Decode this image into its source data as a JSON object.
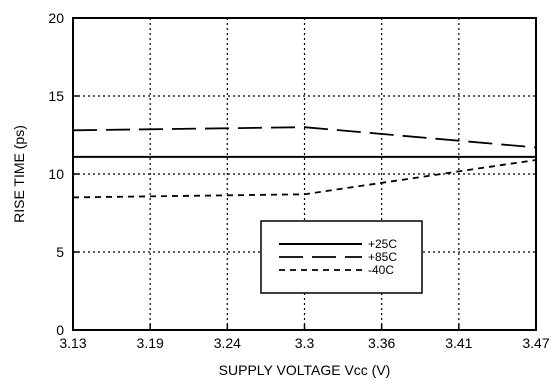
{
  "chart_data": {
    "type": "line",
    "xlabel": "SUPPLY VOLTAGE Vcc (V)",
    "ylabel": "RISE TIME (ps)",
    "x_ticks": [
      "3.13",
      "3.19",
      "3.24",
      "3.3",
      "3.36",
      "3.41",
      "3.47"
    ],
    "x": [
      3.13,
      3.3,
      3.47
    ],
    "y_ticks": [
      "0",
      "5",
      "10",
      "15",
      "20"
    ],
    "ylim": [
      0,
      20
    ],
    "grid": true,
    "legend_position": "bottom-right-inside",
    "series": [
      {
        "name": "+25C",
        "style": "solid",
        "values": [
          11.1,
          11.1,
          11.1
        ]
      },
      {
        "name": "+85C",
        "style": "long-dash",
        "values": [
          12.8,
          13.0,
          11.7
        ]
      },
      {
        "name": "-40C",
        "style": "short-dash",
        "values": [
          8.5,
          8.7,
          10.9
        ]
      }
    ]
  }
}
